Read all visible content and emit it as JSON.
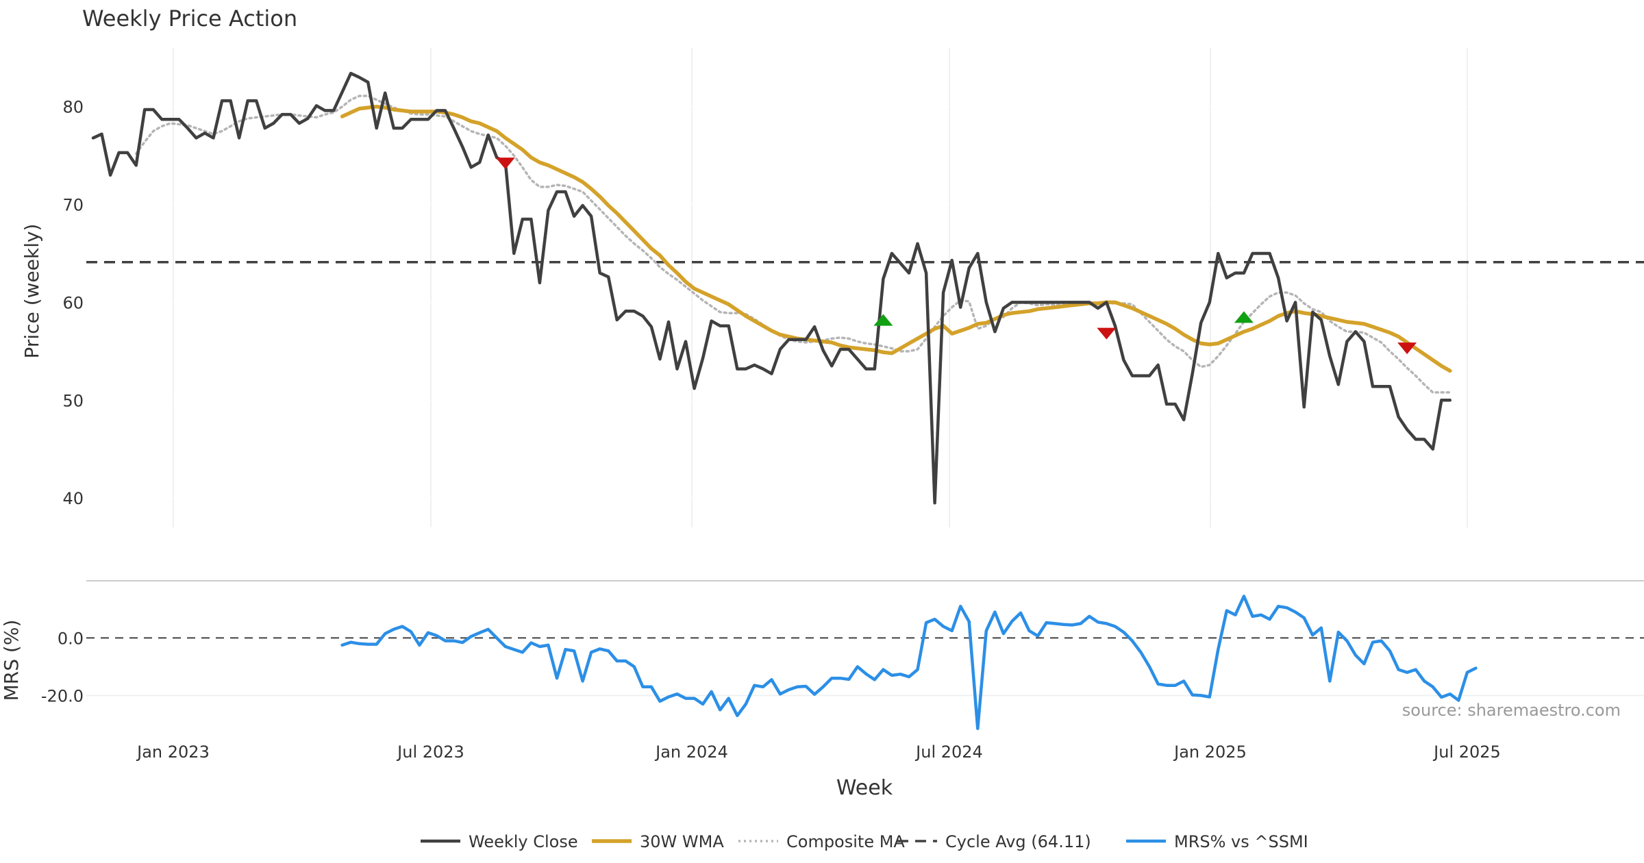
{
  "chart_data": {
    "type": "line",
    "title": "Weekly Price Action",
    "xlabel": "Week",
    "source_text": "source: sharemaestro.com",
    "x_ticks": [
      "Jan 2023",
      "Jul 2023",
      "Jan 2024",
      "Jul 2024",
      "Jan 2025",
      "Jul 2025"
    ],
    "panels": {
      "price": {
        "ylabel": "Price (weekly)",
        "ylim": [
          37,
          86
        ],
        "y_ticks": [
          40,
          50,
          60,
          70,
          80
        ]
      },
      "mrs": {
        "ylabel": "MRS (%)",
        "ylim": [
          -33,
          17
        ],
        "y_ticks": [
          "-20.0",
          "0.0"
        ]
      }
    },
    "x_domain": [
      0,
      177
    ],
    "series": [
      {
        "name": "Weekly Close",
        "color": "#404040",
        "style": "solid",
        "x_start": 0,
        "values": [
          76.8,
          77.2,
          73,
          75.3,
          75.3,
          74,
          79.7,
          79.7,
          78.7,
          78.7,
          78.7,
          77.8,
          76.8,
          77.3,
          76.8,
          80.6,
          80.6,
          76.8,
          80.6,
          80.6,
          77.8,
          78.3,
          79.2,
          79.2,
          78.3,
          78.8,
          80.1,
          79.6,
          79.6,
          81.5,
          83.4,
          83,
          82.5,
          77.8,
          81.4,
          77.8,
          77.8,
          78.7,
          78.7,
          78.7,
          79.6,
          79.6,
          77.8,
          75.9,
          73.8,
          74.3,
          77.1,
          74.8,
          74.3,
          65,
          68.5,
          68.5,
          62,
          69.4,
          71.3,
          71.3,
          68.8,
          69.9,
          68.8,
          63,
          62.6,
          58.2,
          59.1,
          59.1,
          58.6,
          57.5,
          54.2,
          58,
          53.2,
          56,
          51.2,
          54.3,
          58.1,
          57.6,
          57.6,
          53.2,
          53.2,
          53.6,
          53.2,
          52.7,
          55.2,
          56.2,
          56.2,
          56.2,
          57.5,
          55.1,
          53.5,
          55.2,
          55.2,
          54.2,
          53.2,
          53.2,
          62.4,
          65,
          64,
          63,
          66,
          63,
          39.5,
          61,
          64.3,
          59.5,
          63.5,
          65,
          60,
          57,
          59.4,
          60,
          60,
          60,
          60,
          60,
          60,
          60,
          60,
          60,
          60,
          59.4,
          60,
          57.6,
          54.1,
          52.5,
          52.5,
          52.5,
          53.6,
          49.6,
          49.6,
          48,
          52.7,
          57.9,
          60,
          65,
          62.5,
          63,
          63,
          65,
          65,
          65,
          62.5,
          58.1,
          60,
          49.3,
          59,
          58.2,
          54.5,
          51.6,
          56,
          57,
          56,
          51.4,
          51.4,
          51.4,
          48.3,
          47,
          46,
          46,
          45,
          50,
          50
        ]
      },
      {
        "name": "30W WMA",
        "color": "#d4a22a",
        "style": "solid",
        "x_start": 29,
        "values": [
          79,
          79.4,
          79.8,
          79.9,
          80,
          79.9,
          79.7,
          79.6,
          79.5,
          79.5,
          79.5,
          79.5,
          79.4,
          79.2,
          78.9,
          78.5,
          78.3,
          77.9,
          77.5,
          76.8,
          76.2,
          75.6,
          74.8,
          74.3,
          74,
          73.6,
          73.2,
          72.8,
          72.3,
          71.6,
          70.8,
          69.9,
          69.1,
          68.2,
          67.3,
          66.4,
          65.5,
          64.8,
          63.8,
          63,
          62.1,
          61.4,
          61,
          60.6,
          60.2,
          59.8,
          59.2,
          58.6,
          58.1,
          57.6,
          57.1,
          56.7,
          56.5,
          56.3,
          56.2,
          56.1,
          56,
          55.9,
          55.6,
          55.4,
          55.3,
          55.2,
          55.1,
          54.9,
          54.8,
          55.3,
          55.8,
          56.3,
          56.8,
          57.3,
          57.6,
          56.8,
          57.1,
          57.4,
          57.8,
          57.9,
          58.3,
          58.7,
          58.9,
          59,
          59.1,
          59.3,
          59.4,
          59.5,
          59.6,
          59.7,
          59.8,
          59.9,
          59.9,
          60,
          60,
          59.7,
          59.4,
          59,
          58.6,
          58.2,
          57.8,
          57.3,
          56.7,
          56.2,
          55.8,
          55.7,
          55.8,
          56.2,
          56.6,
          57,
          57.3,
          57.7,
          58.1,
          58.6,
          58.9,
          59.1,
          58.9,
          58.8,
          58.6,
          58.4,
          58.2,
          58,
          57.9,
          57.8,
          57.5,
          57.2,
          56.9,
          56.5,
          55.9,
          55.3,
          54.7,
          54.1,
          53.5,
          53
        ]
      },
      {
        "name": "Composite MA",
        "color": "#b5b5b5",
        "style": "dotted",
        "x_start": 5,
        "values": [
          75.2,
          76.4,
          77.5,
          78,
          78.3,
          78.2,
          78.1,
          77.8,
          77.5,
          77.2,
          77.5,
          78,
          78.5,
          78.8,
          78.9,
          79,
          79.1,
          79.2,
          79.2,
          79.1,
          79,
          78.9,
          79.2,
          79.4,
          80,
          80.7,
          81.1,
          81.1,
          80.7,
          80.3,
          79.9,
          79.6,
          79.3,
          79.2,
          79.2,
          79.1,
          79,
          78.5,
          78,
          77.5,
          77.2,
          77,
          76.8,
          76,
          75,
          73.8,
          72.5,
          71.8,
          71.8,
          72,
          71.9,
          71.6,
          71.3,
          70.4,
          69.5,
          68.6,
          67.7,
          66.8,
          66,
          65.3,
          64.5,
          63.6,
          62.9,
          62.3,
          61.6,
          60.9,
          60.2,
          59.6,
          59,
          58.9,
          58.9,
          58.8,
          58.3,
          57.7,
          57.1,
          56.6,
          56.2,
          56,
          55.9,
          56,
          56.1,
          56.3,
          56.4,
          56.3,
          56,
          55.8,
          55.7,
          55.5,
          55.3,
          55,
          55,
          55.2,
          56.3,
          57.5,
          58.6,
          59.5,
          60.2,
          60.1,
          57.3,
          57.6,
          58.3,
          58.5,
          59.4,
          60,
          59.9,
          59.7,
          59.8,
          59.8,
          59.9,
          59.9,
          59.9,
          59.8,
          59.8,
          59.9,
          59.9,
          59.9,
          59.8,
          58.9,
          58,
          57.1,
          56.2,
          55.5,
          55,
          54.1,
          53.4,
          53.6,
          54.5,
          55.6,
          56.8,
          58,
          58.9,
          59.8,
          60.6,
          61,
          61,
          60.7,
          59.9,
          59.3,
          59,
          58.1,
          57.5,
          57,
          57,
          56.9,
          56.4,
          55.9,
          55,
          54.2,
          53.3,
          52.5,
          51.6,
          50.8,
          50.8,
          50.8
        ]
      },
      {
        "name": "Cycle Avg (64.11)",
        "color": "#404040",
        "style": "dashed",
        "value": 64.11
      },
      {
        "name": "MRS% vs ^SSMI",
        "color": "#2c8fe6",
        "style": "solid",
        "panel": "mrs",
        "x_start": 29,
        "values": [
          -2.5,
          -1.5,
          -2,
          -2.2,
          -2.2,
          1.5,
          3,
          4,
          2.2,
          -2.5,
          1.8,
          0.8,
          -1,
          -1,
          -1.6,
          0.5,
          1.8,
          3,
          0,
          -3,
          -4,
          -5,
          -1.7,
          -3,
          -2.5,
          -14,
          -4,
          -4.5,
          -15,
          -5,
          -3.8,
          -4.5,
          -8,
          -8,
          -10,
          -17,
          -17,
          -22,
          -20.5,
          -19.5,
          -21,
          -21,
          -23,
          -18.7,
          -25,
          -21,
          -27,
          -23,
          -16.5,
          -17,
          -14.5,
          -19.5,
          -18,
          -17,
          -16.8,
          -19.6,
          -17,
          -14,
          -14,
          -14.4,
          -10,
          -12.5,
          -14.5,
          -11,
          -13,
          -12.6,
          -13.5,
          -11,
          5.3,
          6.5,
          4,
          2.5,
          11,
          5.7,
          -31.5,
          2.5,
          9,
          1.5,
          5.8,
          8.7,
          2.5,
          0.7,
          5.3,
          5,
          4.7,
          4.5,
          5,
          7.5,
          5.5,
          5,
          4,
          2,
          -1,
          -5,
          -10,
          -16,
          -16.5,
          -16.5,
          -15,
          -19.8,
          -20,
          -20.5,
          -4,
          9.5,
          8,
          14.5,
          7.5,
          8,
          6.5,
          11,
          10.5,
          9,
          7,
          1,
          3.5,
          -15,
          2,
          -1,
          -6,
          -9,
          -1.5,
          -1,
          -4.5,
          -11,
          -12,
          -11,
          -15,
          -17,
          -20.6,
          -19.5,
          -21.7,
          -12,
          -10.5
        ]
      }
    ],
    "markers": [
      {
        "type": "sell",
        "shape": "triangle-down",
        "color": "#cc1111",
        "x": 48,
        "y": 74.2
      },
      {
        "type": "buy",
        "shape": "triangle-up",
        "color": "#11a011",
        "x": 92,
        "y": 58.2
      },
      {
        "type": "sell",
        "shape": "triangle-down",
        "color": "#cc1111",
        "x": 118,
        "y": 56.8
      },
      {
        "type": "buy",
        "shape": "triangle-up",
        "color": "#11a011",
        "x": 134,
        "y": 58.5
      },
      {
        "type": "sell",
        "shape": "triangle-down",
        "color": "#cc1111",
        "x": 153,
        "y": 55.3
      }
    ],
    "mrs_zero_line": 0,
    "legend_position": "bottom-center",
    "grid": true
  }
}
